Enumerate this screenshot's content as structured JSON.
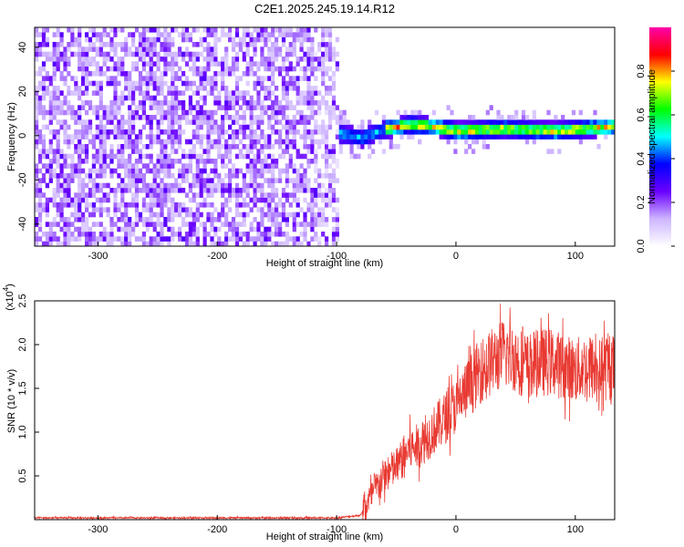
{
  "title": "C2E1.2025.245.19.14.R12",
  "chart_data": [
    {
      "type": "heatmap",
      "title": "C2E1.2025.245.19.14.R12",
      "xlabel": "Height of straight line (km)",
      "ylabel": "Frequency (Hz)",
      "xlim": [
        -353,
        133
      ],
      "ylim": [
        -50,
        49
      ],
      "x_ticks": [
        -300,
        -200,
        -100,
        0,
        100
      ],
      "y_ticks": [
        -40,
        -20,
        0,
        20,
        40
      ],
      "colorbar": {
        "label": "Normalized spectral amplitude",
        "range": [
          0.0,
          1.0
        ],
        "ticks": [
          0.0,
          0.2,
          0.4,
          0.6,
          0.8
        ],
        "tick_labels": [
          "0.0",
          "0.2",
          "0.4",
          "0.6",
          "0.8"
        ],
        "colors": [
          "#ffffff",
          "#cdb4ff",
          "#6a00ff",
          "#0000ff",
          "#00ffff",
          "#00ff00",
          "#ffff00",
          "#ff0000",
          "#ff00aa"
        ]
      },
      "regions": [
        {
          "name": "noise",
          "x_range": [
            -353,
            -100
          ],
          "freq_range": [
            -50,
            49
          ],
          "level": 0.15
        },
        {
          "name": "signal",
          "x_range": [
            -100,
            133
          ],
          "freq_center_points": [
            [
              -100,
              0
            ],
            [
              -80,
              -2
            ],
            [
              -60,
              2
            ],
            [
              -40,
              4
            ],
            [
              -20,
              3
            ],
            [
              0,
              1
            ],
            [
              40,
              2
            ],
            [
              80,
              1
            ],
            [
              133,
              3
            ]
          ],
          "band_halfwidth_hz": 4,
          "peak_level": 0.9
        }
      ]
    },
    {
      "type": "line",
      "xlabel": "Height of straight line (km)",
      "ylabel": "SNR (10 * v/v)",
      "y_scale_label": "(x10",
      "y_scale_exponent": "4",
      "xlim": [
        -353,
        133
      ],
      "ylim": [
        0,
        2.5
      ],
      "x_ticks": [
        -300,
        -200,
        -100,
        0,
        100
      ],
      "y_ticks": [
        0.5,
        1.0,
        1.5,
        2.0,
        2.5
      ],
      "y_tick_labels": [
        "0.5",
        "1.0",
        "1.5",
        "2.0",
        "2.5"
      ],
      "color": "#e83a32",
      "series": [
        {
          "name": "SNR",
          "envelope_points": [
            [
              -353,
              0.02
            ],
            [
              -100,
              0.02
            ],
            [
              -80,
              0.05
            ],
            [
              -70,
              0.3
            ],
            [
              -60,
              0.5
            ],
            [
              -50,
              0.6
            ],
            [
              -40,
              0.8
            ],
            [
              -30,
              0.85
            ],
            [
              -20,
              1.0
            ],
            [
              -10,
              1.15
            ],
            [
              0,
              1.3
            ],
            [
              10,
              1.5
            ],
            [
              20,
              1.7
            ],
            [
              30,
              1.8
            ],
            [
              40,
              1.9
            ],
            [
              50,
              1.85
            ],
            [
              60,
              1.75
            ],
            [
              70,
              1.8
            ],
            [
              80,
              1.8
            ],
            [
              90,
              1.75
            ],
            [
              100,
              1.7
            ],
            [
              110,
              1.75
            ],
            [
              120,
              1.7
            ],
            [
              133,
              1.75
            ]
          ],
          "spread": 0.35
        }
      ]
    }
  ]
}
